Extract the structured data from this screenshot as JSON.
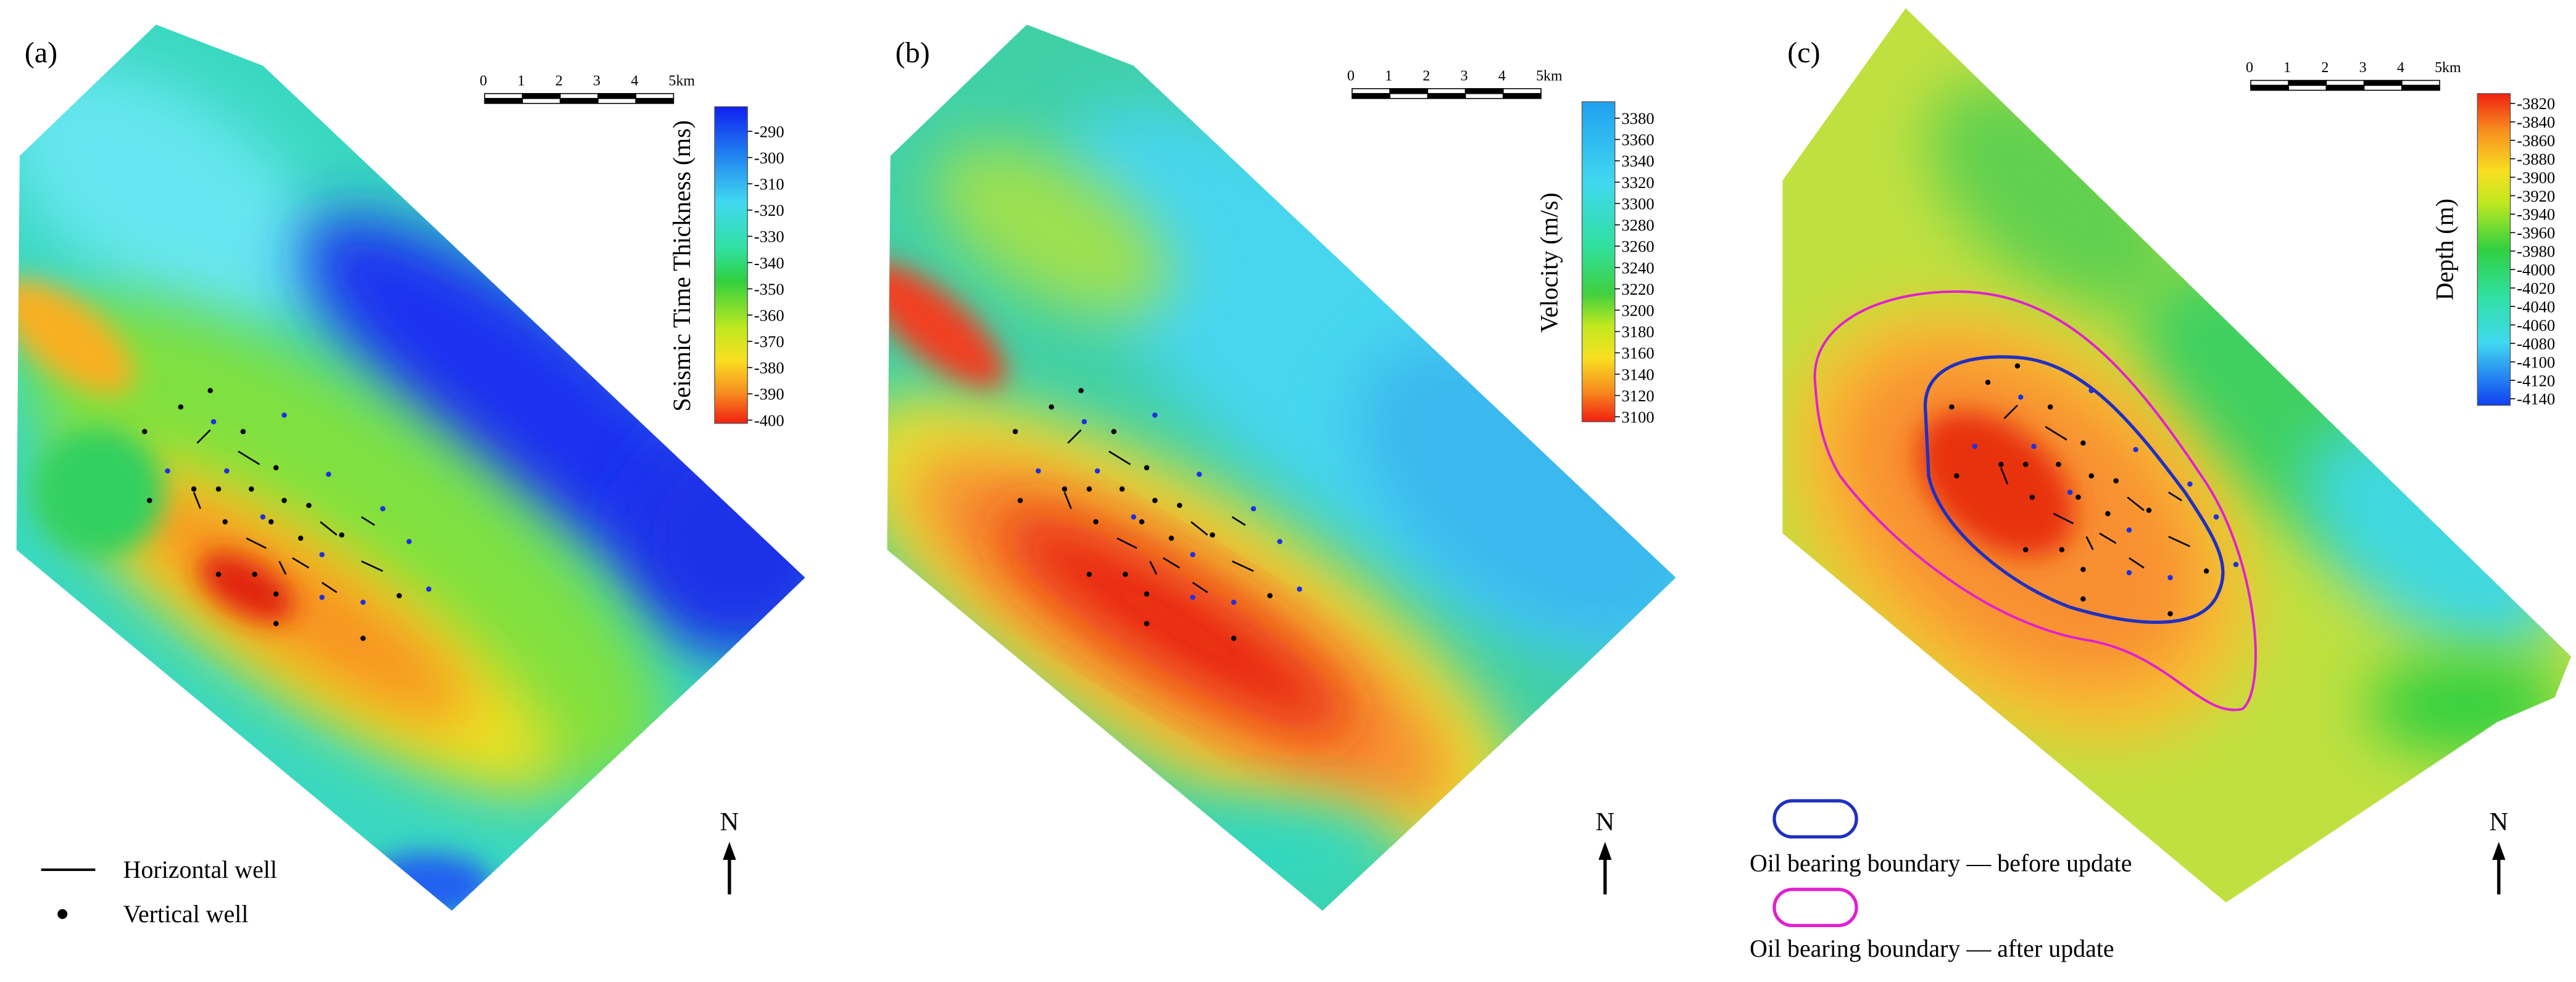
{
  "panels": [
    {
      "label": "(a)",
      "colorbar_title": "Seismic Time Thickness (ms)",
      "colorbar_ticks": [
        -290,
        -300,
        -310,
        -320,
        -330,
        -340,
        -350,
        -360,
        -370,
        -380,
        -390,
        -400
      ],
      "scale_labels": [
        "0",
        "1",
        "2",
        "3",
        "4",
        "5km"
      ],
      "north": "N"
    },
    {
      "label": "(b)",
      "colorbar_title": "Velocity (m/s)",
      "colorbar_ticks": [
        3380,
        3360,
        3340,
        3320,
        3300,
        3280,
        3260,
        3240,
        3220,
        3200,
        3180,
        3160,
        3140,
        3120,
        3100
      ],
      "scale_labels": [
        "0",
        "1",
        "2",
        "3",
        "4",
        "5km"
      ],
      "north": "N"
    },
    {
      "label": "(c)",
      "colorbar_title": "Depth (m)",
      "colorbar_ticks": [
        -3820,
        -3840,
        -3860,
        -3880,
        -3900,
        -3920,
        -3940,
        -3960,
        -3980,
        -4000,
        -4020,
        -4040,
        -4060,
        -4080,
        -4100,
        -4120,
        -4140
      ],
      "scale_labels": [
        "0",
        "1",
        "2",
        "3",
        "4",
        "5km"
      ],
      "north": "N"
    }
  ],
  "legend_wells": {
    "horizontal": "Horizontal well",
    "vertical": "Vertical well"
  },
  "legend_boundary": {
    "before": "Oil bearing boundary — before update",
    "after": "Oil bearing boundary — after update"
  }
}
